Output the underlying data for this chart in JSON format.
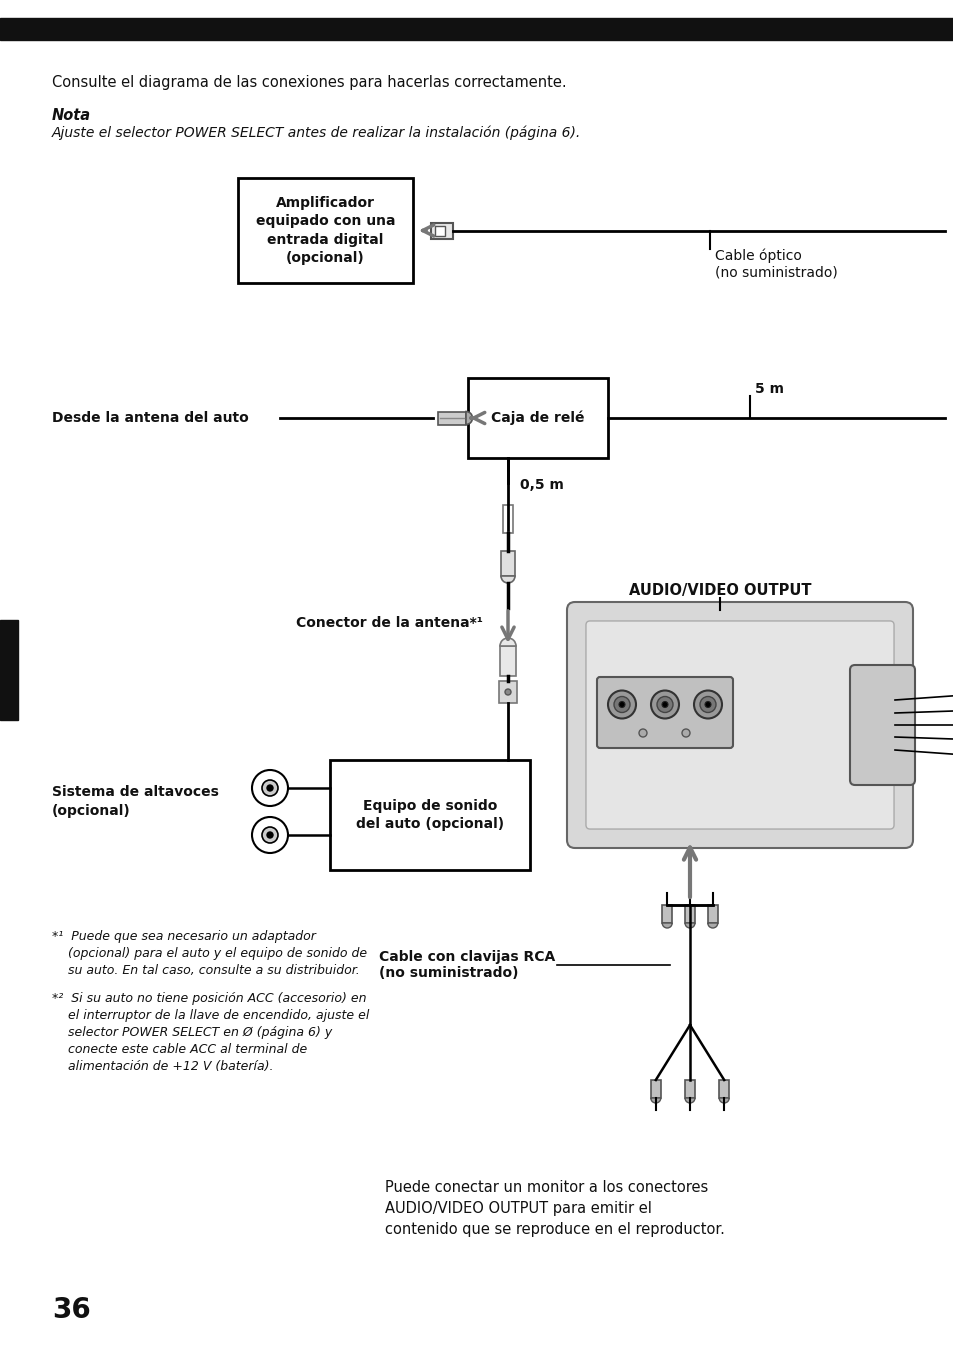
{
  "bg_color": "#ffffff",
  "header_bar_color": "#111111",
  "text_color": "#111111",
  "page_number": "36",
  "intro_text": "Consulte el diagrama de las conexiones para hacerlas correctamente.",
  "nota_label": "Nota",
  "nota_text": "Ajuste el selector POWER SELECT antes de realizar la instalación (página 6).",
  "box1_text": "Amplificador\nequipado con una\nentrada digital\n(opcional)",
  "cable_optico_text": "Cable óptico\n(no suministrado)",
  "desde_antena_text": "Desde la antena del auto",
  "caja_rele_text": "Caja de relé",
  "distance_5m": "5 m",
  "distance_05m": "0,5 m",
  "conector_antena_text": "Conector de la antena*¹",
  "sistema_altavoces_text": "Sistema de altavoces\n(opcional)",
  "equipo_sonido_text": "Equipo de sonido\ndel auto (opcional)",
  "audio_video_label": "AUDIO/VIDEO OUTPUT",
  "cable_rca_text": "Cable con clavijas RCA\n(no suministrado)",
  "footnote1": "*¹  Puede que sea necesario un adaptador\n    (opcional) para el auto y el equipo de sonido de\n    su auto. En tal caso, consulte a su distribuidor.",
  "footnote2": "*²  Si su auto no tiene posición ACC (accesorio) en\n    el interruptor de la llave de encendido, ajuste el\n    selector POWER SELECT en Ø (página 6) y\n    conecte este cable ACC al terminal de\n    alimentación de +12 V (batería).",
  "bottom_text": "Puede conectar un monitor a los conectores\nAUDIO/VIDEO OUTPUT para emitir el\ncontenido que se reproduce en el reproductor."
}
